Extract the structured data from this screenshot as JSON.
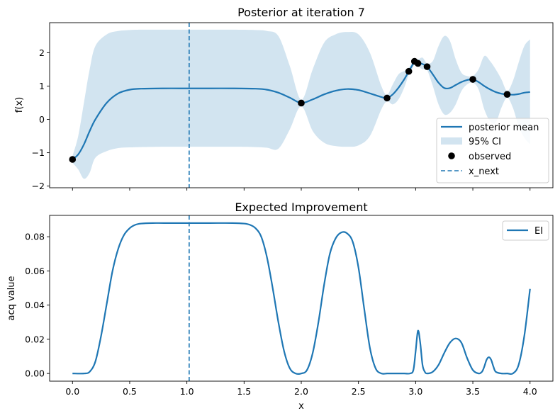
{
  "chart_data": [
    {
      "type": "line",
      "title": "Posterior at iteration 7",
      "xlabel": "",
      "ylabel": "f(x)",
      "xlim": [
        -0.2,
        4.2
      ],
      "ylim": [
        -2.05,
        2.9
      ],
      "xticks": [
        0.0,
        0.5,
        1.0,
        1.5,
        2.0,
        2.5,
        3.0,
        3.5,
        4.0
      ],
      "yticks": [
        -2,
        -1,
        0,
        1,
        2
      ],
      "ytick_labels": [
        "−2",
        "−1",
        "0",
        "1",
        "2"
      ],
      "grid": false,
      "legend_position": "lower-right",
      "legend": [
        "posterior mean",
        "95% CI",
        "observed",
        "x_next"
      ],
      "x_next": 1.02,
      "observed": [
        {
          "x": 0.0,
          "y": -1.2
        },
        {
          "x": 2.0,
          "y": 0.49
        },
        {
          "x": 2.75,
          "y": 0.64
        },
        {
          "x": 2.94,
          "y": 1.44
        },
        {
          "x": 2.99,
          "y": 1.74
        },
        {
          "x": 3.02,
          "y": 1.68
        },
        {
          "x": 3.1,
          "y": 1.58
        },
        {
          "x": 3.5,
          "y": 1.2
        },
        {
          "x": 3.8,
          "y": 0.75
        }
      ],
      "series": [
        {
          "name": "posterior mean",
          "x": [
            0.0,
            0.05,
            0.1,
            0.15,
            0.2,
            0.3,
            0.4,
            0.5,
            0.6,
            0.8,
            1.0,
            1.2,
            1.4,
            1.6,
            1.7,
            1.8,
            1.9,
            2.0,
            2.1,
            2.2,
            2.3,
            2.4,
            2.5,
            2.6,
            2.7,
            2.75,
            2.8,
            2.85,
            2.9,
            2.94,
            2.97,
            2.99,
            3.02,
            3.06,
            3.1,
            3.15,
            3.2,
            3.25,
            3.3,
            3.35,
            3.4,
            3.45,
            3.5,
            3.55,
            3.6,
            3.65,
            3.7,
            3.75,
            3.8,
            3.85,
            3.9,
            3.95,
            4.0
          ],
          "mean": [
            -1.2,
            -1.05,
            -0.75,
            -0.35,
            0.0,
            0.5,
            0.78,
            0.89,
            0.92,
            0.93,
            0.93,
            0.93,
            0.93,
            0.92,
            0.89,
            0.8,
            0.65,
            0.49,
            0.6,
            0.75,
            0.86,
            0.91,
            0.88,
            0.78,
            0.67,
            0.64,
            0.75,
            0.95,
            1.2,
            1.44,
            1.62,
            1.74,
            1.7,
            1.66,
            1.58,
            1.35,
            1.1,
            0.94,
            0.94,
            1.03,
            1.12,
            1.18,
            1.2,
            1.12,
            1.0,
            0.9,
            0.82,
            0.77,
            0.75,
            0.74,
            0.76,
            0.8,
            0.82
          ],
          "lower": [
            -1.3,
            -1.5,
            -1.78,
            -1.6,
            -1.15,
            -0.95,
            -0.86,
            -0.84,
            -0.83,
            -0.82,
            -0.82,
            -0.82,
            -0.82,
            -0.83,
            -0.85,
            -0.88,
            -0.3,
            0.39,
            -0.35,
            -0.7,
            -0.8,
            -0.82,
            -0.78,
            -0.5,
            0.3,
            0.54,
            0.45,
            0.6,
            0.95,
            1.34,
            1.52,
            1.64,
            1.6,
            1.5,
            1.48,
            1.0,
            0.45,
            0.15,
            0.2,
            0.45,
            0.85,
            1.05,
            1.1,
            0.9,
            0.3,
            -0.05,
            -0.1,
            0.35,
            0.65,
            0.35,
            -0.2,
            -0.55,
            -0.75
          ],
          "upper": [
            -1.1,
            -0.5,
            0.5,
            1.5,
            2.2,
            2.55,
            2.65,
            2.68,
            2.69,
            2.69,
            2.69,
            2.69,
            2.69,
            2.68,
            2.65,
            2.5,
            1.6,
            0.59,
            1.5,
            2.3,
            2.55,
            2.62,
            2.55,
            2.0,
            1.0,
            0.74,
            1.05,
            1.35,
            1.45,
            1.54,
            1.72,
            1.84,
            1.8,
            1.85,
            1.68,
            1.75,
            2.2,
            2.5,
            2.35,
            1.8,
            1.4,
            1.3,
            1.3,
            1.5,
            1.9,
            1.75,
            1.5,
            1.2,
            0.85,
            1.15,
            1.7,
            2.2,
            2.4
          ]
        }
      ]
    },
    {
      "type": "line",
      "title": "Expected Improvement",
      "xlabel": "x",
      "ylabel": "acq value",
      "xlim": [
        -0.2,
        4.2
      ],
      "ylim": [
        -0.0045,
        0.0925
      ],
      "xticks": [
        0.0,
        0.5,
        1.0,
        1.5,
        2.0,
        2.5,
        3.0,
        3.5,
        4.0
      ],
      "xtick_labels": [
        "0.0",
        "0.5",
        "1.0",
        "1.5",
        "2.0",
        "2.5",
        "3.0",
        "3.5",
        "4.0"
      ],
      "yticks": [
        0.0,
        0.02,
        0.04,
        0.06,
        0.08
      ],
      "ytick_labels": [
        "0.00",
        "0.02",
        "0.04",
        "0.06",
        "0.08"
      ],
      "grid": false,
      "legend_position": "top-right",
      "legend": [
        "EI"
      ],
      "x_next": 1.02,
      "series": [
        {
          "name": "EI",
          "x": [
            0.0,
            0.1,
            0.15,
            0.2,
            0.25,
            0.3,
            0.35,
            0.4,
            0.45,
            0.5,
            0.55,
            0.6,
            0.7,
            0.8,
            1.0,
            1.2,
            1.4,
            1.5,
            1.55,
            1.6,
            1.65,
            1.7,
            1.75,
            1.8,
            1.85,
            1.9,
            1.95,
            2.0,
            2.05,
            2.1,
            2.15,
            2.2,
            2.25,
            2.3,
            2.35,
            2.4,
            2.45,
            2.5,
            2.55,
            2.6,
            2.65,
            2.7,
            2.75,
            2.8,
            2.9,
            2.95,
            2.98,
            3.0,
            3.02,
            3.04,
            3.06,
            3.08,
            3.1,
            3.15,
            3.2,
            3.25,
            3.3,
            3.35,
            3.4,
            3.45,
            3.5,
            3.55,
            3.58,
            3.6,
            3.62,
            3.64,
            3.66,
            3.68,
            3.7,
            3.75,
            3.8,
            3.85,
            3.9,
            3.95,
            4.0
          ],
          "values": [
            0.0,
            0.0,
            0.001,
            0.007,
            0.022,
            0.041,
            0.06,
            0.073,
            0.081,
            0.085,
            0.087,
            0.0877,
            0.088,
            0.088,
            0.088,
            0.088,
            0.088,
            0.0877,
            0.087,
            0.085,
            0.08,
            0.068,
            0.05,
            0.03,
            0.013,
            0.003,
            0.0,
            0.0,
            0.002,
            0.012,
            0.03,
            0.052,
            0.07,
            0.079,
            0.0825,
            0.082,
            0.077,
            0.062,
            0.038,
            0.015,
            0.003,
            0.0,
            0.0,
            0.0,
            0.0,
            0.0,
            0.002,
            0.013,
            0.025,
            0.018,
            0.005,
            0.001,
            0.0,
            0.001,
            0.005,
            0.012,
            0.018,
            0.0205,
            0.018,
            0.009,
            0.002,
            0.0,
            0.001,
            0.004,
            0.008,
            0.0095,
            0.008,
            0.004,
            0.001,
            0.0,
            0.0,
            0.0,
            0.005,
            0.022,
            0.0495
          ]
        }
      ]
    }
  ],
  "colors": {
    "mean_line": "#1f77b4",
    "ci_fill": "#1f77b4",
    "observed_marker": "#000000",
    "x_next_line": "#1f77b4"
  }
}
